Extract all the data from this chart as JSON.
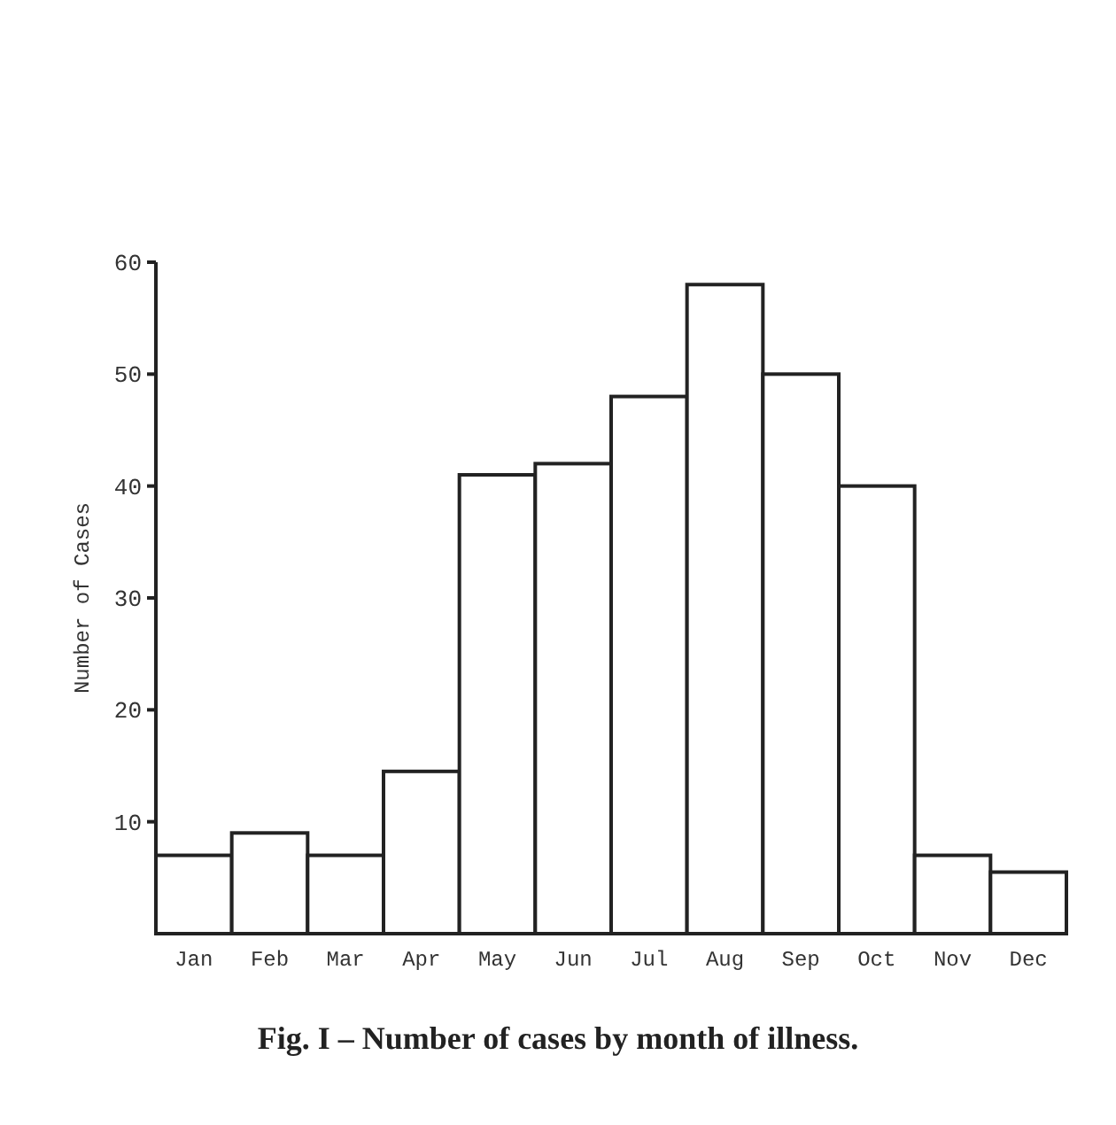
{
  "chart_data": {
    "type": "bar",
    "title": "Fig. I – Number of cases by month of illness.",
    "ylabel": "Number of Cases",
    "categories": [
      "Jan",
      "Feb",
      "Mar",
      "Apr",
      "May",
      "Jun",
      "Jul",
      "Aug",
      "Sep",
      "Oct",
      "Nov",
      "Dec"
    ],
    "values": [
      7,
      9,
      7,
      14.5,
      41,
      42,
      48,
      58,
      50,
      40,
      7,
      5.5
    ],
    "color": "#ffffff",
    "ylim": [
      0,
      60
    ],
    "yticks": [
      10,
      20,
      30,
      40,
      50,
      60
    ],
    "grid": false
  }
}
